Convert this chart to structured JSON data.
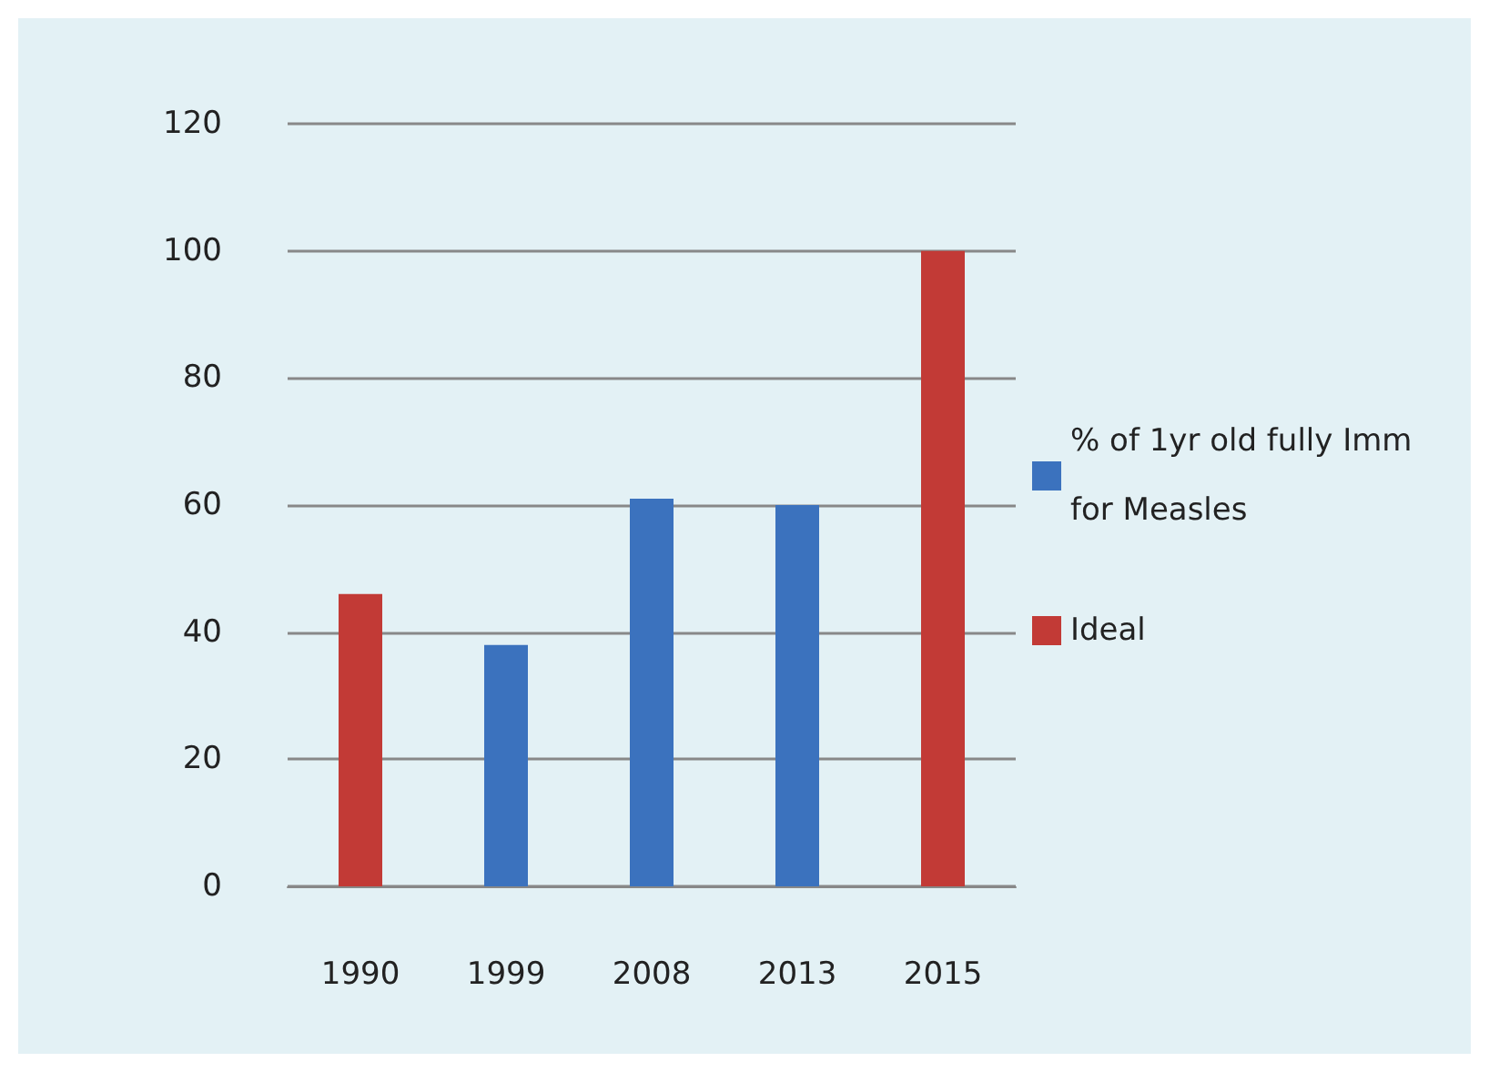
{
  "chart_data": {
    "type": "bar",
    "categories": [
      "1990",
      "1999",
      "2008",
      "2013",
      "2015"
    ],
    "series": [
      {
        "name": "% of 1yr old fully Imm for Measles",
        "color": "#3b72be",
        "values": [
          null,
          38,
          61,
          60,
          null
        ]
      },
      {
        "name": "Ideal",
        "color": "#c23a36",
        "values": [
          46,
          null,
          null,
          null,
          100
        ]
      }
    ],
    "ylim": [
      0,
      120
    ],
    "yticks": [
      0,
      20,
      40,
      60,
      80,
      100,
      120
    ],
    "grid": "y",
    "legend": "right"
  }
}
